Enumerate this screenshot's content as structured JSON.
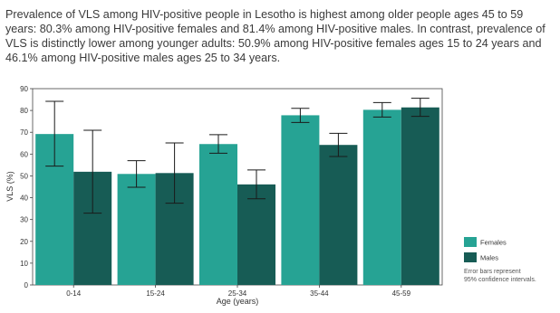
{
  "caption": "Prevalence of VLS among HIV-positive people in Lesotho is highest among older people ages 45 to 59 years: 80.3% among HIV-positive females and 81.4% among HIV-positive males. In contrast, prevalence of VLS is distinctly lower among younger adults: 50.9% among HIV-positive females ages 15 to 24 years and 46.1% among HIV-positive males ages 25 to 34 years.",
  "chart_data": {
    "type": "bar",
    "xlabel": "Age (years)",
    "ylabel": "VLS (%)",
    "ylim": [
      0,
      90
    ],
    "yticks": [
      0,
      10,
      20,
      30,
      40,
      50,
      60,
      70,
      80,
      90
    ],
    "grid": false,
    "legend_position": "right",
    "categories": [
      "0-14",
      "15-24",
      "25-34",
      "35-44",
      "45-59"
    ],
    "series": [
      {
        "name": "Females",
        "color": "#26a394",
        "values": [
          69.2,
          50.9,
          64.6,
          77.8,
          80.3
        ],
        "ci_low": [
          54.5,
          44.8,
          60.4,
          74.5,
          77.0
        ],
        "ci_high": [
          84.2,
          57.0,
          68.9,
          81.0,
          83.6
        ]
      },
      {
        "name": "Males",
        "color": "#175c55",
        "values": [
          51.9,
          51.3,
          46.1,
          64.2,
          81.4
        ],
        "ci_low": [
          32.9,
          37.5,
          39.5,
          58.9,
          77.3
        ],
        "ci_high": [
          70.9,
          65.1,
          52.7,
          69.5,
          85.6
        ]
      }
    ],
    "note": "Error bars represent 95% confidence intervals."
  }
}
